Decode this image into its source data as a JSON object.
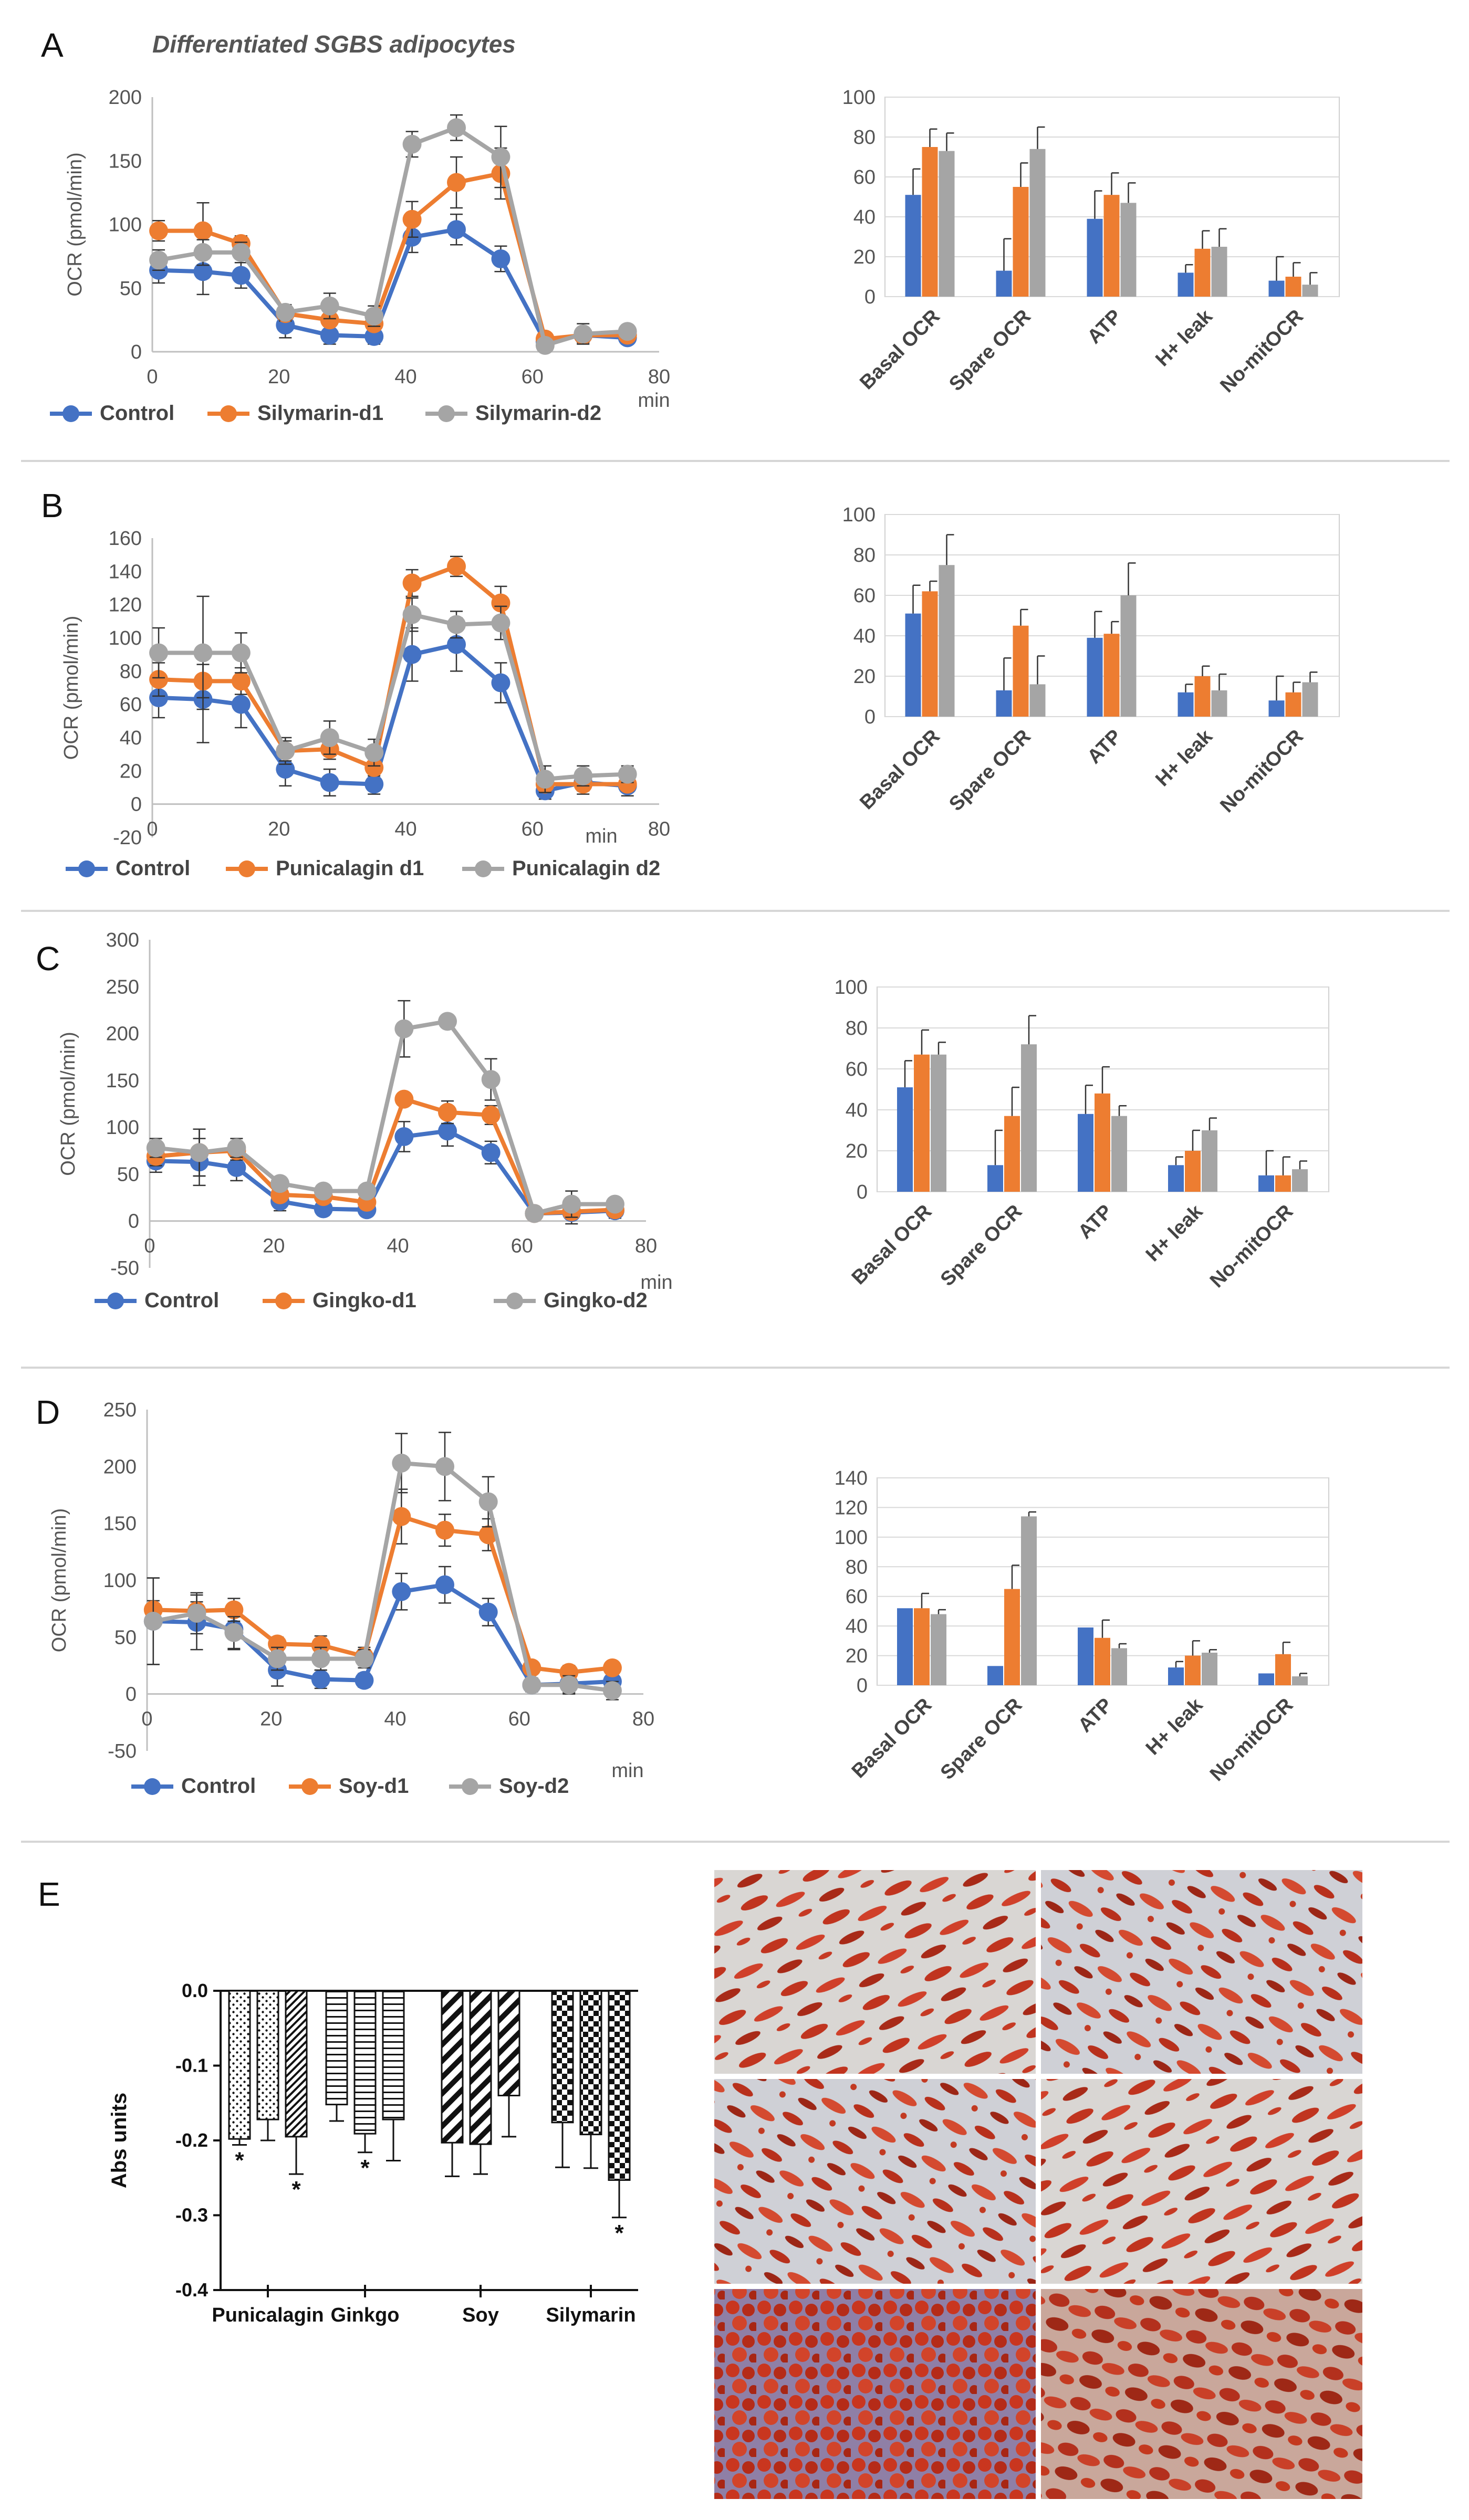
{
  "figure": {
    "title": "Differentiated SGBS adipocytes",
    "panel_labels": [
      "A",
      "B",
      "C",
      "D",
      "E"
    ],
    "colors": {
      "control": "#4472C4",
      "dose1": "#ED7D31",
      "dose2": "#A5A5A5",
      "axis": "#BFBFBF",
      "text": "#595959"
    }
  },
  "chart_data": [
    {
      "id": "A-time",
      "type": "line",
      "panel": "A",
      "ylabel": "OCR (pmol/min)",
      "xlabel": "min",
      "ylim": [
        0,
        200
      ],
      "yticks": [
        0,
        50,
        100,
        150,
        200
      ],
      "xlim": [
        0,
        80
      ],
      "xticks": [
        0,
        20,
        40,
        60,
        80
      ],
      "x": [
        1,
        8,
        14,
        21,
        28,
        35,
        41,
        48,
        55,
        62,
        68,
        75
      ],
      "series": [
        {
          "name": "Control",
          "color": "#4472C4",
          "values": [
            64,
            63,
            60,
            21,
            13,
            12,
            90,
            96,
            73,
            8,
            13,
            11
          ],
          "err": [
            10,
            18,
            10,
            10,
            7,
            6,
            12,
            12,
            10,
            4,
            6,
            5
          ]
        },
        {
          "name": "Silymarin-d1",
          "color": "#ED7D31",
          "values": [
            95,
            95,
            85,
            30,
            25,
            22,
            104,
            133,
            140,
            10,
            13,
            13
          ],
          "err": [
            8,
            22,
            6,
            6,
            5,
            5,
            14,
            20,
            20,
            4,
            5,
            4
          ]
        },
        {
          "name": "Silymarin-d2",
          "color": "#A5A5A5",
          "values": [
            72,
            78,
            78,
            31,
            36,
            28,
            163,
            176,
            153,
            5,
            14,
            16
          ],
          "err": [
            8,
            10,
            8,
            6,
            10,
            8,
            10,
            10,
            24,
            4,
            8,
            5
          ]
        }
      ]
    },
    {
      "id": "A-bar",
      "type": "bar",
      "panel": "A",
      "categories": [
        "Basal OCR",
        "Spare OCR",
        "ATP",
        "H+ leak",
        "No-mitOCR"
      ],
      "ylim": [
        0,
        100
      ],
      "yticks": [
        0,
        20,
        40,
        60,
        80,
        100
      ],
      "series": [
        {
          "name": "Control",
          "color": "#4472C4",
          "values": [
            51,
            13,
            39,
            12,
            8
          ],
          "err": [
            13,
            16,
            14,
            4,
            12
          ]
        },
        {
          "name": "Silymarin-d1",
          "color": "#ED7D31",
          "values": [
            75,
            55,
            51,
            24,
            10
          ],
          "err": [
            9,
            12,
            11,
            9,
            7
          ]
        },
        {
          "name": "Silymarin-d2",
          "color": "#A5A5A5",
          "values": [
            73,
            74,
            47,
            25,
            6
          ],
          "err": [
            9,
            11,
            10,
            9,
            6
          ]
        }
      ]
    },
    {
      "id": "B-time",
      "type": "line",
      "panel": "B",
      "ylabel": "OCR (pmol/min)",
      "xlabel": "min",
      "ylim": [
        -20,
        160
      ],
      "yticks": [
        -20,
        0,
        20,
        40,
        60,
        80,
        100,
        120,
        140,
        160
      ],
      "xlim": [
        0,
        80
      ],
      "xticks": [
        0,
        20,
        40,
        60,
        80
      ],
      "x": [
        1,
        8,
        14,
        21,
        28,
        35,
        41,
        48,
        55,
        62,
        68,
        75
      ],
      "series": [
        {
          "name": "Control",
          "color": "#4472C4",
          "values": [
            64,
            63,
            60,
            21,
            13,
            12,
            90,
            96,
            73,
            8,
            13,
            11
          ],
          "err": [
            12,
            26,
            14,
            10,
            8,
            6,
            16,
            16,
            12,
            5,
            7,
            6
          ]
        },
        {
          "name": "Punicalagin d1",
          "color": "#ED7D31",
          "values": [
            75,
            74,
            74,
            32,
            33,
            22,
            133,
            143,
            121,
            12,
            12,
            12
          ],
          "err": [
            10,
            10,
            8,
            6,
            6,
            5,
            8,
            6,
            10,
            4,
            4,
            4
          ]
        },
        {
          "name": "Punicalagin d2",
          "color": "#A5A5A5",
          "values": [
            91,
            91,
            91,
            32,
            40,
            31,
            114,
            108,
            109,
            15,
            17,
            18
          ],
          "err": [
            15,
            34,
            12,
            8,
            10,
            8,
            10,
            8,
            10,
            8,
            6,
            5
          ]
        }
      ]
    },
    {
      "id": "B-bar",
      "type": "bar",
      "panel": "B",
      "categories": [
        "Basal OCR",
        "Spare OCR",
        "ATP",
        "H+ leak",
        "No-mitOCR"
      ],
      "ylim": [
        0,
        100
      ],
      "yticks": [
        0,
        20,
        40,
        60,
        80,
        100
      ],
      "series": [
        {
          "name": "Control",
          "color": "#4472C4",
          "values": [
            51,
            13,
            39,
            12,
            8
          ],
          "err": [
            14,
            16,
            13,
            4,
            12
          ]
        },
        {
          "name": "Punicalagin d1",
          "color": "#ED7D31",
          "values": [
            62,
            45,
            41,
            20,
            12
          ],
          "err": [
            5,
            8,
            6,
            5,
            5
          ]
        },
        {
          "name": "Punicalagin d2",
          "color": "#A5A5A5",
          "values": [
            75,
            16,
            60,
            13,
            17
          ],
          "err": [
            15,
            14,
            16,
            8,
            5
          ]
        }
      ]
    },
    {
      "id": "C-time",
      "type": "line",
      "panel": "C",
      "ylabel": "OCR (pmol/min)",
      "xlabel": "min",
      "ylim": [
        -50,
        300
      ],
      "yticks": [
        -50,
        0,
        50,
        100,
        150,
        200,
        250,
        300
      ],
      "xlim": [
        0,
        80
      ],
      "xticks": [
        0,
        20,
        40,
        60,
        80
      ],
      "x": [
        1,
        8,
        14,
        21,
        28,
        35,
        41,
        48,
        55,
        62,
        68,
        75
      ],
      "series": [
        {
          "name": "Control",
          "color": "#4472C4",
          "values": [
            64,
            63,
            57,
            21,
            13,
            12,
            90,
            96,
            73,
            8,
            9,
            11
          ],
          "err": [
            12,
            25,
            14,
            10,
            7,
            6,
            16,
            16,
            12,
            6,
            12,
            8
          ]
        },
        {
          "name": "Gingko-d1",
          "color": "#ED7D31",
          "values": [
            69,
            73,
            75,
            28,
            26,
            20,
            130,
            116,
            113,
            8,
            10,
            12
          ],
          "err": [
            10,
            25,
            10,
            6,
            6,
            6,
            6,
            12,
            10,
            4,
            6,
            4
          ]
        },
        {
          "name": "Gingko-d2",
          "color": "#A5A5A5",
          "values": [
            78,
            73,
            78,
            40,
            32,
            32,
            205,
            213,
            151,
            8,
            18,
            18
          ],
          "err": [
            10,
            25,
            10,
            6,
            6,
            6,
            30,
            6,
            22,
            6,
            14,
            6
          ]
        }
      ]
    },
    {
      "id": "C-bar",
      "type": "bar",
      "panel": "C",
      "categories": [
        "Basal OCR",
        "Spare OCR",
        "ATP",
        "H+ leak",
        "No-mitOCR"
      ],
      "ylim": [
        0,
        100
      ],
      "yticks": [
        0,
        20,
        40,
        60,
        80,
        100
      ],
      "series": [
        {
          "name": "Control",
          "color": "#4472C4",
          "values": [
            51,
            13,
            38,
            13,
            8
          ],
          "err": [
            13,
            17,
            14,
            4,
            12
          ]
        },
        {
          "name": "Gingko-d1",
          "color": "#ED7D31",
          "values": [
            67,
            37,
            48,
            20,
            8
          ],
          "err": [
            12,
            14,
            13,
            10,
            9
          ]
        },
        {
          "name": "Gingko-d2",
          "color": "#A5A5A5",
          "values": [
            67,
            72,
            37,
            30,
            11
          ],
          "err": [
            6,
            14,
            5,
            6,
            4
          ]
        }
      ]
    },
    {
      "id": "D-time",
      "type": "line",
      "panel": "D",
      "ylabel": "OCR (pmol/min)",
      "xlabel": "min",
      "ylim": [
        -50,
        250
      ],
      "yticks": [
        -50,
        0,
        50,
        100,
        150,
        200,
        250
      ],
      "xlim": [
        0,
        80
      ],
      "xticks": [
        0,
        20,
        40,
        60,
        80
      ],
      "x": [
        1,
        8,
        14,
        21,
        28,
        35,
        41,
        48,
        55,
        62,
        68,
        75
      ],
      "series": [
        {
          "name": "Control",
          "color": "#4472C4",
          "values": [
            64,
            63,
            57,
            21,
            13,
            12,
            90,
            96,
            72,
            8,
            9,
            11
          ],
          "err": [
            38,
            24,
            18,
            14,
            8,
            6,
            16,
            16,
            12,
            6,
            8,
            8
          ]
        },
        {
          "name": "Soy-d1",
          "color": "#ED7D31",
          "values": [
            74,
            73,
            74,
            44,
            43,
            33,
            156,
            144,
            140,
            23,
            19,
            23
          ],
          "err": [
            8,
            8,
            10,
            6,
            8,
            8,
            24,
            14,
            14,
            4,
            6,
            4
          ]
        },
        {
          "name": "Soy-d2",
          "color": "#A5A5A5",
          "values": [
            64,
            71,
            54,
            31,
            31,
            31,
            203,
            200,
            169,
            8,
            8,
            3
          ],
          "err": [
            38,
            18,
            14,
            10,
            10,
            8,
            26,
            30,
            22,
            6,
            8,
            8
          ]
        }
      ]
    },
    {
      "id": "D-bar",
      "type": "bar",
      "panel": "D",
      "categories": [
        "Basal OCR",
        "Spare OCR",
        "ATP",
        "H+ leak",
        "No-mitOCR"
      ],
      "ylim": [
        0,
        140
      ],
      "yticks": [
        0,
        20,
        40,
        60,
        80,
        100,
        120,
        140
      ],
      "series": [
        {
          "name": "Control",
          "color": "#4472C4",
          "values": [
            52,
            13,
            39,
            12,
            8
          ],
          "err": [
            0,
            0,
            0,
            4,
            0
          ]
        },
        {
          "name": "Soy-d1",
          "color": "#ED7D31",
          "values": [
            52,
            65,
            32,
            20,
            21
          ],
          "err": [
            10,
            16,
            12,
            10,
            8
          ]
        },
        {
          "name": "Soy-d2",
          "color": "#A5A5A5",
          "values": [
            48,
            114,
            25,
            22,
            6
          ],
          "err": [
            3,
            3,
            3,
            2,
            2
          ]
        }
      ]
    },
    {
      "id": "E-bar",
      "type": "bar",
      "panel": "E",
      "ylabel": "Abs units",
      "categories": [
        "Punicalagin",
        "Ginkgo",
        "Soy",
        "Silymarin"
      ],
      "ylim": [
        -0.4,
        0.0
      ],
      "yticks": [
        "0.0",
        "-0.1",
        "-0.2",
        "-0.3",
        "-0.4"
      ],
      "significance_mark": "*",
      "series_values": [
        [
          -0.198,
          -0.172,
          -0.195
        ],
        [
          -0.152,
          -0.191,
          -0.172
        ],
        [
          -0.203,
          -0.205,
          -0.14
        ],
        [
          -0.176,
          -0.192,
          -0.253
        ]
      ],
      "series_err": [
        [
          0.008,
          0.028,
          0.05
        ],
        [
          0.022,
          0.025,
          0.055
        ],
        [
          0.045,
          0.04,
          0.055
        ],
        [
          0.06,
          0.045,
          0.05
        ]
      ],
      "significant": [
        [
          true,
          false,
          true
        ],
        [
          false,
          true,
          false
        ],
        [
          false,
          false,
          false
        ],
        [
          false,
          false,
          true
        ]
      ]
    }
  ]
}
